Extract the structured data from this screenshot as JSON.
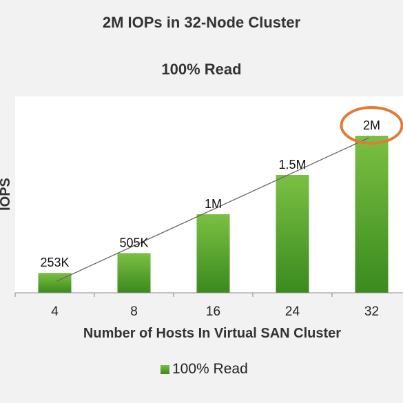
{
  "chart_data": {
    "type": "bar",
    "title": "2M IOPs in 32-Node Cluster",
    "subtitle": "100% Read",
    "xlabel": "Number of Hosts In Virtual SAN Cluster",
    "ylabel": "IOPS",
    "categories": [
      "4",
      "8",
      "16",
      "24",
      "32"
    ],
    "series": [
      {
        "name": "100% Read",
        "values": [
          253000,
          505000,
          1000000,
          1500000,
          2000000
        ],
        "labels": [
          "253K",
          "505K",
          "1M",
          "1.5M",
          "2M"
        ]
      }
    ],
    "ylim": [
      0,
      2500000
    ],
    "grid": false,
    "legend_position": "bottom",
    "trendline": true,
    "highlighted_label": "2M",
    "colors": {
      "bar_top": "#7bc043",
      "bar_bottom": "#3a8a1e",
      "trendline": "#666666",
      "highlight": "#e07b39"
    }
  }
}
